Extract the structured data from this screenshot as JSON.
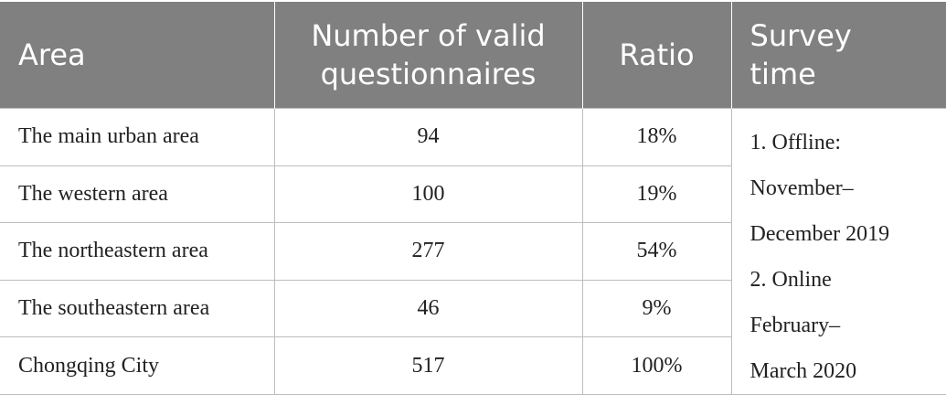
{
  "table": {
    "header": [
      "Area",
      "Number of valid questionnaires",
      "Ratio",
      "Survey time"
    ],
    "rows": [
      [
        "The main urban area",
        "94",
        "18%"
      ],
      [
        "The western area",
        "100",
        "19%"
      ],
      [
        "The northeastern area",
        "277",
        "54%"
      ],
      [
        "The southeastern area",
        "46",
        "9%"
      ],
      [
        "Chongqing City",
        "517",
        "100%"
      ]
    ],
    "survey_time": [
      "1. Offline:",
      "November–",
      "December 2019",
      "2. Online",
      "February–",
      "March 2020"
    ]
  }
}
